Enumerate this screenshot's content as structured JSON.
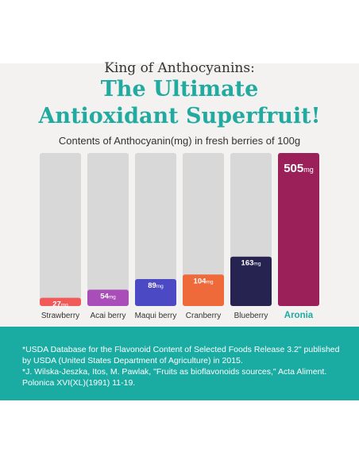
{
  "header": {
    "kicker": "King of Anthocyanins:",
    "headline_line1": "The Ultimate",
    "headline_line2": "Antioxidant Superfruit!"
  },
  "chart_data": {
    "type": "bar",
    "title": "Contents of Anthocyanin(mg) in fresh berries of 100g",
    "categories": [
      "Strawberry",
      "Acai berry",
      "Maqui berry",
      "Cranberry",
      "Blueberry",
      "Aronia"
    ],
    "values": [
      27,
      54,
      89,
      104,
      163,
      505
    ],
    "unit": "mg",
    "ylim": [
      0,
      505
    ],
    "bar_colors": [
      "#f25a5a",
      "#a94db8",
      "#4b49c4",
      "#ee6a3a",
      "#262350",
      "#9b1f58"
    ],
    "highlight_category": "Aronia",
    "highlight_label_color": "#1aaca3",
    "track_color": "#d8d8d8"
  },
  "footnotes": [
    "*USDA Database for the Flavonoid Content of Selected Foods Release 3.2\" published by USDA (United States Department of Agriculture) in 2015.",
    "*J. Wilska-Jeszka, Itos, M. Pawlak, \"Fruits as bioflavonoids sources,\" Acta Aliment. Polonica XVI(XL)(1991) 11-19."
  ]
}
